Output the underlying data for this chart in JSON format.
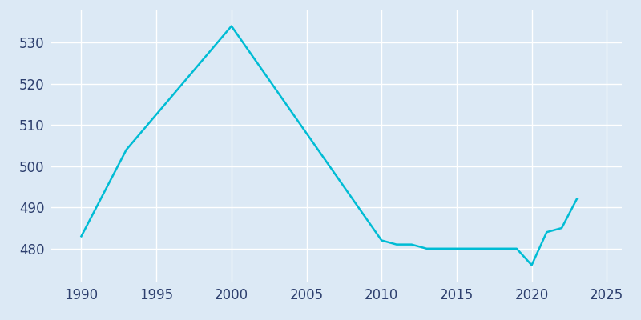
{
  "years": [
    1990,
    1993,
    2000,
    2010,
    2011,
    2012,
    2013,
    2014,
    2015,
    2016,
    2017,
    2018,
    2019,
    2020,
    2021,
    2022,
    2023
  ],
  "population": [
    483,
    504,
    534,
    482,
    481,
    481,
    480,
    480,
    480,
    480,
    480,
    480,
    480,
    476,
    484,
    485,
    492
  ],
  "line_color": "#00bcd4",
  "background_color": "#dce9f5",
  "grid_color": "#ffffff",
  "xlim": [
    1988,
    2026
  ],
  "ylim": [
    472,
    538
  ],
  "xticks": [
    1990,
    1995,
    2000,
    2005,
    2010,
    2015,
    2020,
    2025
  ],
  "yticks": [
    480,
    490,
    500,
    510,
    520,
    530
  ],
  "tick_color": "#2d3f6e",
  "spine_color": "#c0cfe0",
  "linewidth": 1.8,
  "tick_labelsize": 12
}
